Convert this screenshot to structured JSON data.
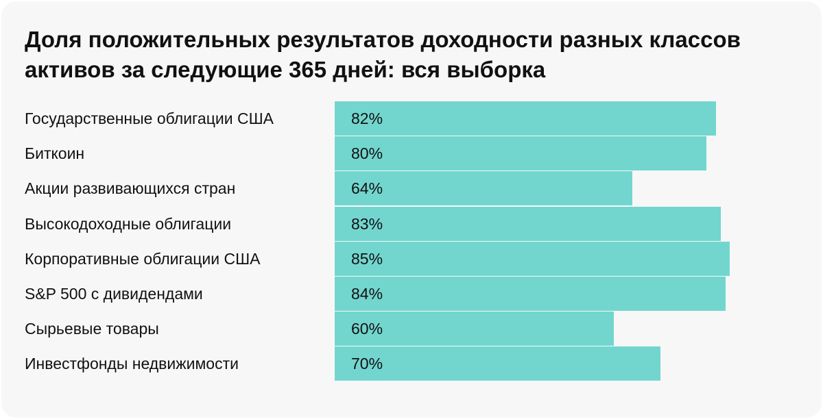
{
  "chart_data": {
    "type": "bar",
    "orientation": "horizontal",
    "title": "Доля положительных результатов доходности разных классов активов за следующие 365 дней: вся выборка",
    "categories": [
      "Государственные облигации США",
      "Биткоин",
      "Акции развивающихся стран",
      "Высокодоходные облигации",
      "Корпоративные облигации США",
      "S&P 500 с дивидендами",
      "Сырьевые товары",
      "Инвестфонды недвижимости"
    ],
    "values": [
      82,
      80,
      64,
      83,
      85,
      84,
      60,
      70
    ],
    "value_labels": [
      "82%",
      "80%",
      "64%",
      "83%",
      "85%",
      "84%",
      "60%",
      "70%"
    ],
    "xlim": [
      0,
      100
    ],
    "bar_color": "#72d6cf",
    "grid": false
  }
}
